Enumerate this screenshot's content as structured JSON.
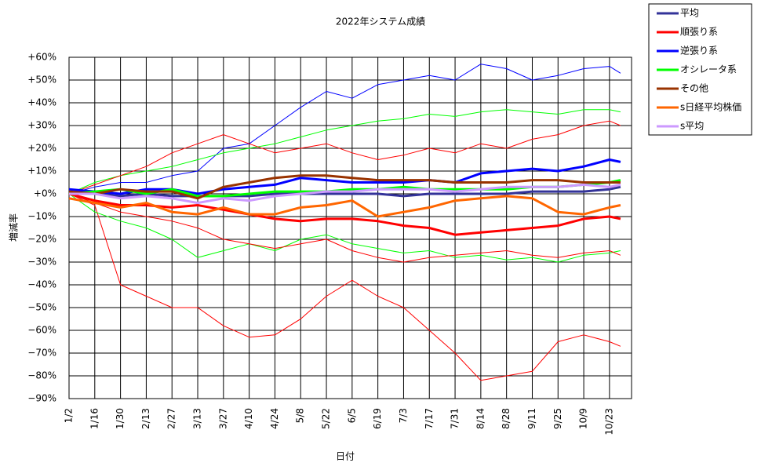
{
  "chart_data": {
    "type": "line",
    "title": "2022年システム成績",
    "xlabel": "日付",
    "ylabel": "増減率",
    "x": [
      0,
      14,
      28,
      42,
      56,
      70,
      84,
      98,
      112,
      126,
      140,
      154,
      168,
      182,
      196,
      210,
      224,
      238,
      252,
      266,
      280,
      294,
      300
    ],
    "xlim": [
      0,
      306
    ],
    "xticks": [
      {
        "value": 0,
        "label": "1/2"
      },
      {
        "value": 14,
        "label": "1/16"
      },
      {
        "value": 28,
        "label": "1/30"
      },
      {
        "value": 42,
        "label": "2/13"
      },
      {
        "value": 56,
        "label": "2/27"
      },
      {
        "value": 70,
        "label": "3/13"
      },
      {
        "value": 84,
        "label": "3/27"
      },
      {
        "value": 98,
        "label": "4/10"
      },
      {
        "value": 112,
        "label": "4/24"
      },
      {
        "value": 126,
        "label": "5/8"
      },
      {
        "value": 140,
        "label": "5/22"
      },
      {
        "value": 154,
        "label": "6/5"
      },
      {
        "value": 168,
        "label": "6/19"
      },
      {
        "value": 182,
        "label": "7/3"
      },
      {
        "value": 196,
        "label": "7/17"
      },
      {
        "value": 210,
        "label": "7/31"
      },
      {
        "value": 224,
        "label": "8/14"
      },
      {
        "value": 238,
        "label": "8/28"
      },
      {
        "value": 252,
        "label": "9/11"
      },
      {
        "value": 266,
        "label": "9/25"
      },
      {
        "value": 280,
        "label": "10/9"
      },
      {
        "value": 294,
        "label": "10/23"
      }
    ],
    "ylim": [
      -90,
      60
    ],
    "yticks": [
      {
        "value": -90,
        "label": "−90%"
      },
      {
        "value": -80,
        "label": "−80%"
      },
      {
        "value": -70,
        "label": "−70%"
      },
      {
        "value": -60,
        "label": "−60%"
      },
      {
        "value": -50,
        "label": "−50%"
      },
      {
        "value": -40,
        "label": "−40%"
      },
      {
        "value": -30,
        "label": "−30%"
      },
      {
        "value": -20,
        "label": "−20%"
      },
      {
        "value": -10,
        "label": "−10%"
      },
      {
        "value": 0,
        "label": "+0%"
      },
      {
        "value": 10,
        "label": "+10%"
      },
      {
        "value": 20,
        "label": "+20%"
      },
      {
        "value": 30,
        "label": "+30%"
      },
      {
        "value": 40,
        "label": "+40%"
      },
      {
        "value": 50,
        "label": "+50%"
      },
      {
        "value": 60,
        "label": "+60%"
      }
    ],
    "grid": true,
    "legend": "outside-right",
    "series": [
      {
        "color": "#0000ff",
        "width": 1,
        "values": [
          0,
          3,
          5,
          5,
          8,
          10,
          20,
          22,
          30,
          38,
          45,
          42,
          48,
          50,
          52,
          50,
          57,
          55,
          50,
          52,
          55,
          56,
          53
        ]
      },
      {
        "color": "#ff0000",
        "width": 1,
        "values": [
          0,
          -5,
          -40,
          -45,
          -50,
          -50,
          -58,
          -63,
          -62,
          -55,
          -45,
          -38,
          -45,
          -50,
          -60,
          -70,
          -82,
          -80,
          -78,
          -65,
          -62,
          -65,
          -67
        ]
      },
      {
        "color": "#00ff00",
        "width": 1,
        "values": [
          0,
          5,
          8,
          10,
          12,
          15,
          18,
          20,
          22,
          25,
          28,
          30,
          32,
          33,
          35,
          34,
          36,
          37,
          36,
          35,
          37,
          37,
          36
        ]
      },
      {
        "color": "#00ff00",
        "width": 1,
        "values": [
          0,
          -8,
          -12,
          -15,
          -20,
          -28,
          -25,
          -22,
          -25,
          -20,
          -18,
          -22,
          -24,
          -26,
          -25,
          -28,
          -27,
          -29,
          -28,
          -30,
          -27,
          -26,
          -25
        ]
      },
      {
        "color": "#ff0000",
        "width": 1,
        "values": [
          0,
          4,
          8,
          12,
          18,
          22,
          26,
          22,
          18,
          20,
          22,
          18,
          15,
          17,
          20,
          18,
          22,
          20,
          24,
          26,
          30,
          32,
          30
        ]
      },
      {
        "color": "#ff0000",
        "width": 1,
        "values": [
          0,
          -4,
          -8,
          -10,
          -12,
          -15,
          -20,
          -22,
          -24,
          -22,
          -20,
          -25,
          -28,
          -30,
          -28,
          -27,
          -26,
          -25,
          -27,
          -28,
          -26,
          -25,
          -27
        ]
      },
      {
        "name": "平均",
        "color": "#333399",
        "width": 3,
        "values": [
          0,
          0,
          -1,
          0,
          -1,
          -1,
          -1,
          -1,
          0,
          0,
          0,
          0,
          0,
          -1,
          0,
          0,
          0,
          0,
          1,
          1,
          1,
          2,
          3
        ]
      },
      {
        "name": "順張り系",
        "color": "#ff0000",
        "width": 3,
        "values": [
          0,
          -3,
          -5,
          -5,
          -6,
          -5,
          -7,
          -9,
          -11,
          -12,
          -11,
          -11,
          -12,
          -14,
          -15,
          -18,
          -17,
          -16,
          -15,
          -14,
          -11,
          -10,
          -11
        ]
      },
      {
        "name": "逆張り系",
        "color": "#0000ff",
        "width": 3,
        "values": [
          2,
          1,
          0,
          2,
          2,
          0,
          2,
          3,
          4,
          7,
          6,
          5,
          5,
          5,
          6,
          5,
          9,
          10,
          11,
          10,
          12,
          15,
          14
        ]
      },
      {
        "name": "オシレータ系",
        "color": "#00ff00",
        "width": 3,
        "values": [
          0,
          1,
          2,
          0,
          2,
          -1,
          -1,
          0,
          1,
          1,
          1,
          2,
          2,
          3,
          2,
          2,
          2,
          2,
          3,
          3,
          4,
          5,
          6
        ]
      },
      {
        "name": "その他",
        "color": "#993300",
        "width": 3,
        "values": [
          1,
          0,
          2,
          1,
          1,
          -2,
          3,
          5,
          7,
          8,
          8,
          7,
          6,
          6,
          6,
          5,
          5,
          5,
          6,
          6,
          5,
          5,
          5
        ]
      },
      {
        "name": "s日経平均株価",
        "color": "#ff6600",
        "width": 3,
        "values": [
          -2,
          -4,
          -6,
          -4,
          -8,
          -9,
          -6,
          -9,
          -9,
          -6,
          -5,
          -3,
          -10,
          -8,
          -6,
          -3,
          -2,
          -1,
          -2,
          -8,
          -9,
          -6,
          -5
        ]
      },
      {
        "name": "s平均",
        "color": "#cc99ff",
        "width": 3,
        "values": [
          0,
          0,
          -2,
          -1,
          -2,
          -4,
          -2,
          -3,
          -1,
          0,
          1,
          1,
          2,
          2,
          2,
          1,
          2,
          3,
          3,
          3,
          4,
          3,
          4
        ]
      }
    ]
  }
}
